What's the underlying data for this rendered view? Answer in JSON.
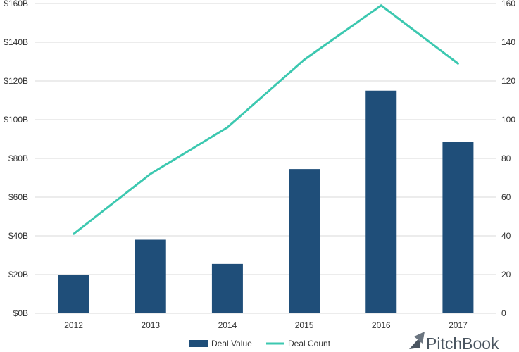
{
  "chart_data": {
    "type": "bar",
    "categories": [
      "2012",
      "2013",
      "2014",
      "2015",
      "2016",
      "2017"
    ],
    "series": [
      {
        "name": "Deal Value",
        "type": "bar",
        "axis": "left",
        "color": "#1f4e79",
        "values": [
          20,
          38,
          25.5,
          74.5,
          115,
          88.5
        ]
      },
      {
        "name": "Deal Count",
        "type": "line",
        "axis": "right",
        "color": "#3cc8b0",
        "values": [
          41,
          72,
          96,
          131,
          159,
          129
        ]
      }
    ],
    "y_left": {
      "ylim": [
        0,
        160
      ],
      "ticks": [
        "$0B",
        "$20B",
        "$40B",
        "$60B",
        "$80B",
        "$100B",
        "$120B",
        "$140B",
        "$160B"
      ]
    },
    "y_right": {
      "ylim": [
        0,
        160
      ],
      "ticks": [
        "0",
        "20",
        "40",
        "60",
        "80",
        "100",
        "120",
        "140",
        "160"
      ]
    },
    "grid": true,
    "legend": {
      "placement": "bottom-center",
      "items": [
        "Deal Value",
        "Deal Count"
      ]
    }
  },
  "brand": {
    "text": "PitchBook",
    "icon": "pitchbook-logo-icon"
  },
  "colors": {
    "grid": "#d9d9d9",
    "text": "#333333"
  }
}
